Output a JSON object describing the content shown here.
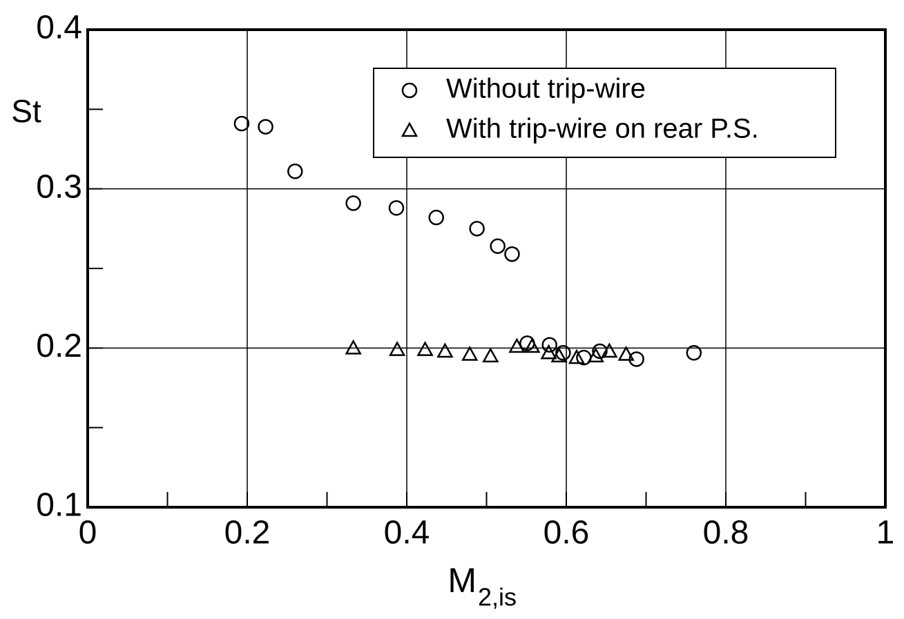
{
  "chart_data": {
    "type": "scatter",
    "x_label": "M",
    "x_label_subscript": "2,is",
    "y_label": "St",
    "xlim": [
      0,
      1
    ],
    "ylim": [
      0.1,
      0.4
    ],
    "xticks": [
      0,
      0.2,
      0.4,
      0.6,
      0.8,
      1
    ],
    "yticks": [
      0.1,
      0.2,
      0.3,
      0.4
    ],
    "xminorticks": [
      0.1,
      0.3,
      0.5,
      0.7,
      0.9
    ],
    "yminorticks": [
      0.15,
      0.25,
      0.35
    ],
    "grid": true,
    "legend": "upper right",
    "series": [
      {
        "name": "Without trip-wire",
        "marker": "circle",
        "color": "#000000",
        "x": [
          0.193,
          0.223,
          0.26,
          0.333,
          0.387,
          0.437,
          0.488,
          0.514,
          0.532,
          0.551,
          0.579,
          0.596,
          0.622,
          0.642,
          0.688,
          0.76
        ],
        "values": [
          0.341,
          0.339,
          0.311,
          0.291,
          0.288,
          0.282,
          0.275,
          0.264,
          0.259,
          0.203,
          0.202,
          0.197,
          0.194,
          0.198,
          0.193,
          0.197
        ]
      },
      {
        "name": "With trip-wire on rear P.S.",
        "marker": "triangle",
        "color": "#000000",
        "x": [
          0.333,
          0.388,
          0.423,
          0.448,
          0.479,
          0.505,
          0.538,
          0.557,
          0.578,
          0.591,
          0.613,
          0.637,
          0.654,
          0.675
        ],
        "values": [
          0.2,
          0.199,
          0.199,
          0.198,
          0.196,
          0.195,
          0.201,
          0.201,
          0.197,
          0.195,
          0.194,
          0.195,
          0.198,
          0.196
        ]
      }
    ]
  }
}
